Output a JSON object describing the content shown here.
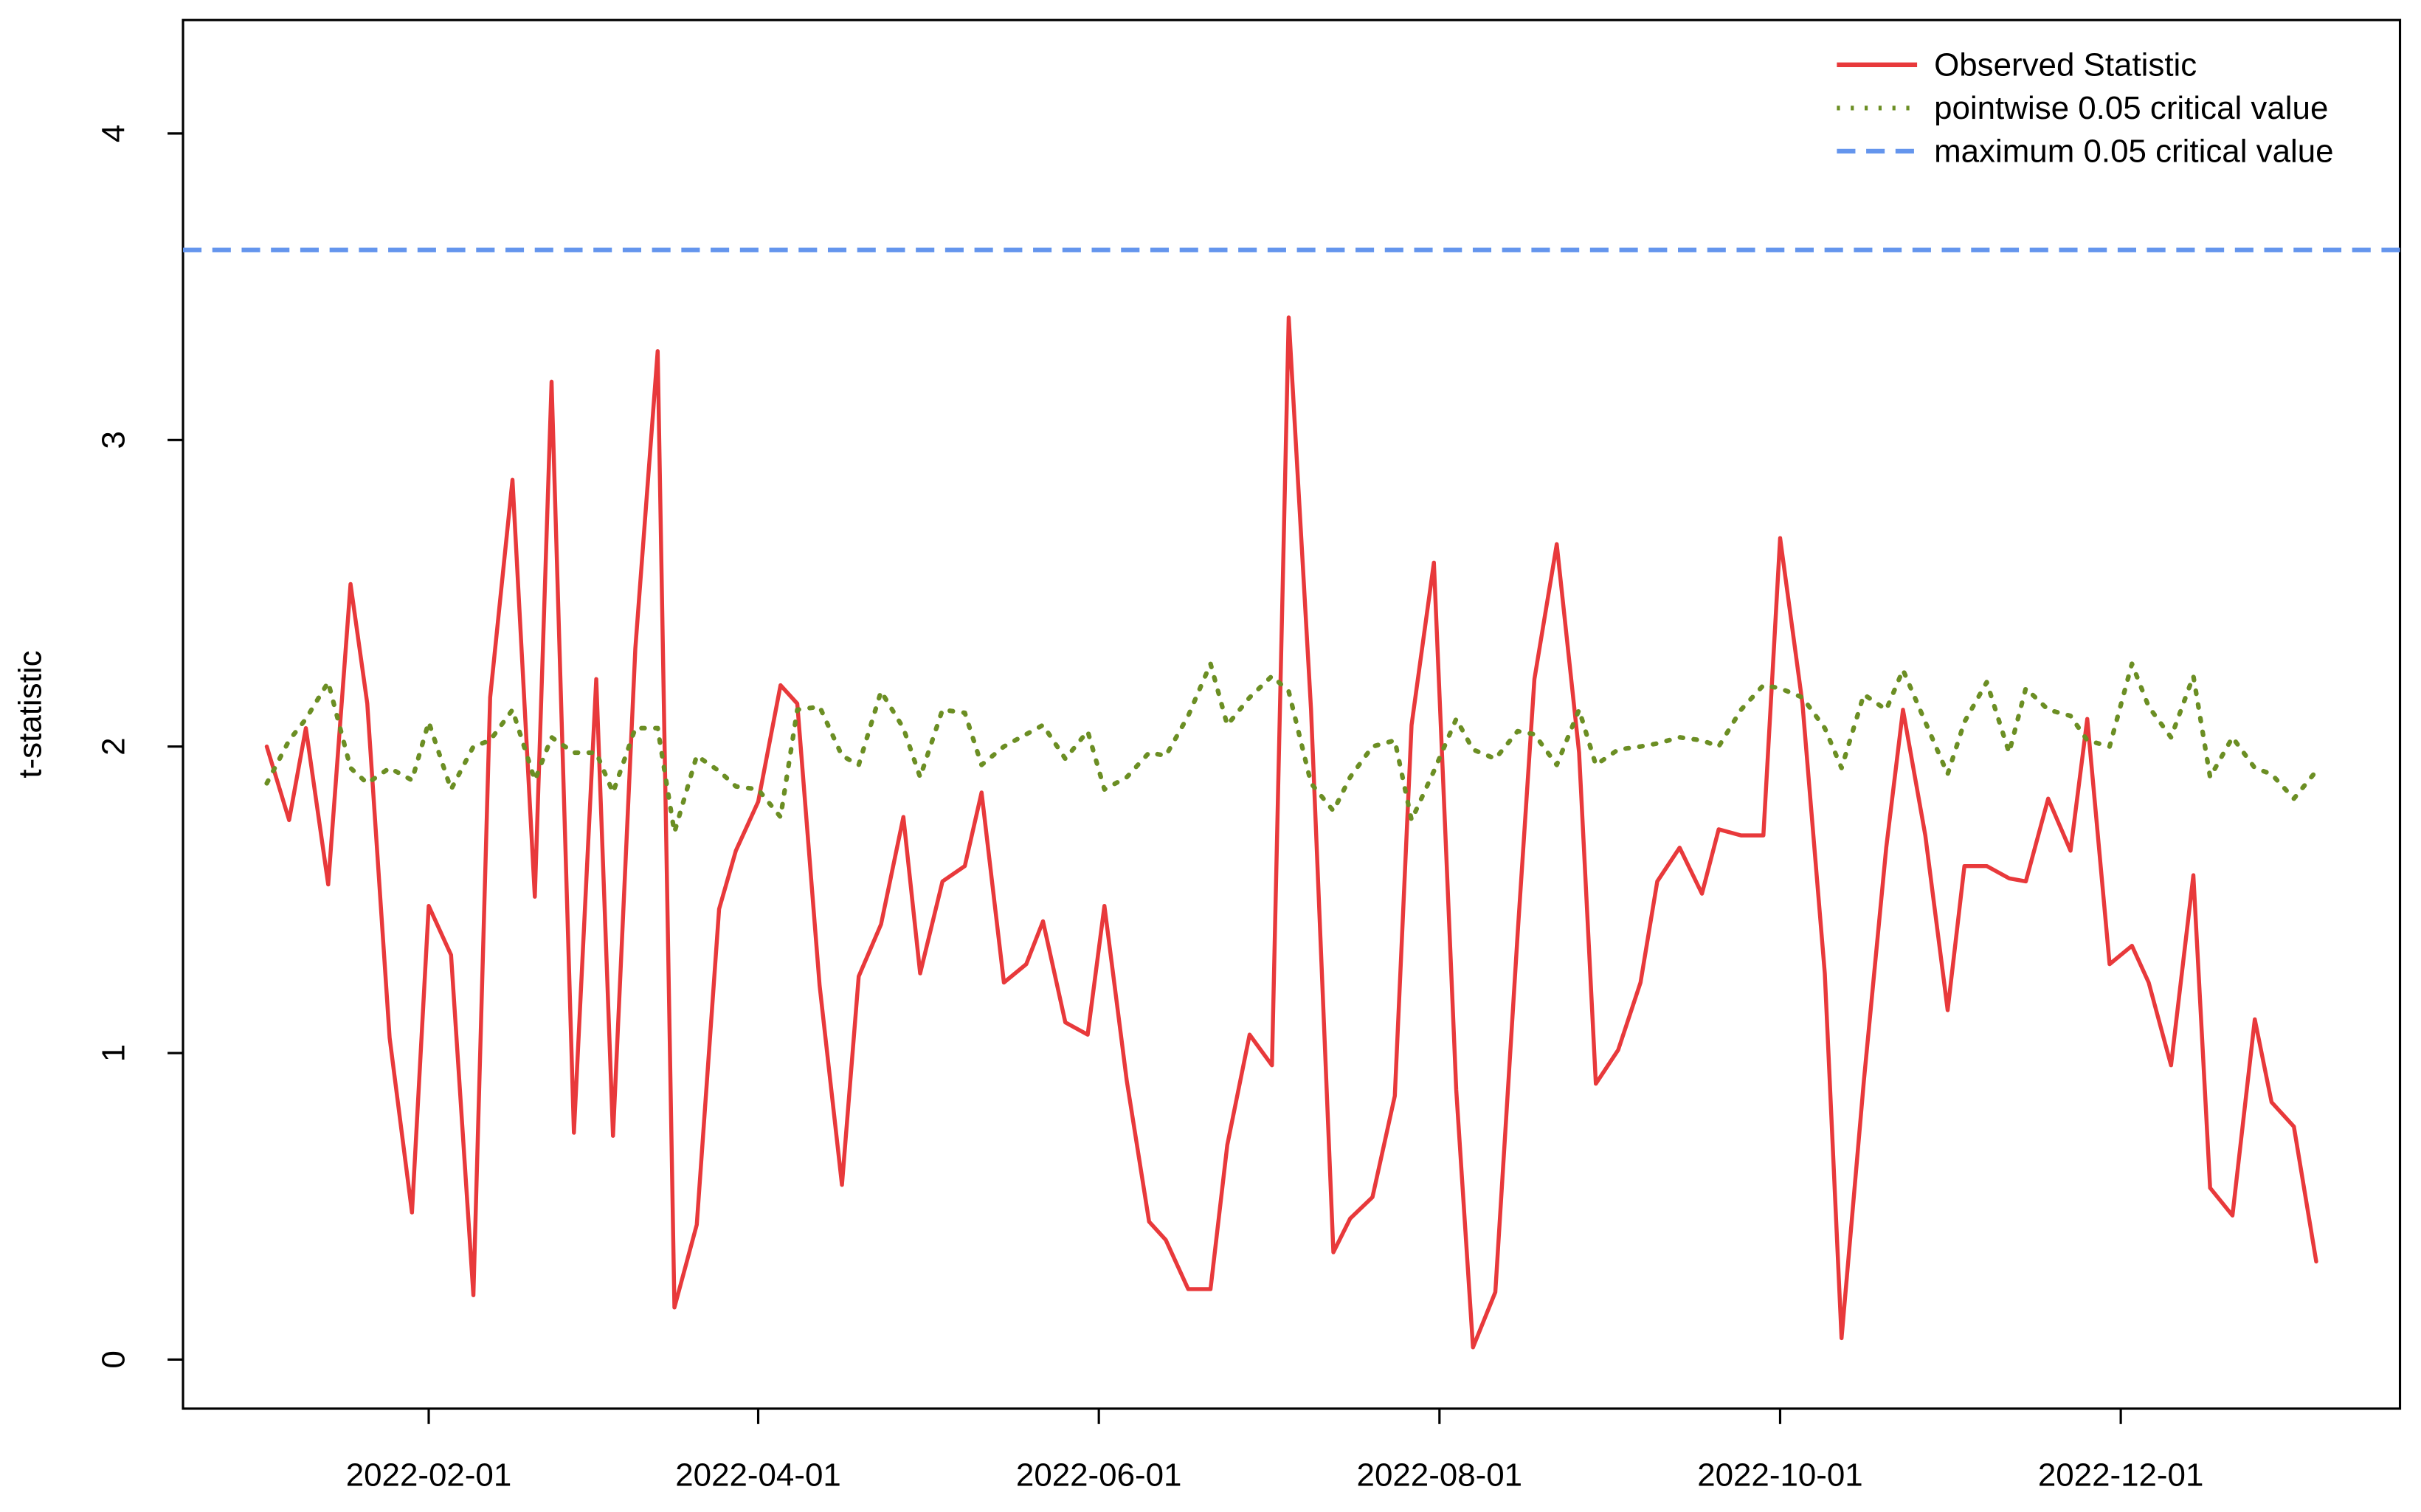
{
  "chart_data": {
    "type": "line",
    "ylabel": "t-statistic",
    "x": [
      "2022-01-03",
      "2022-01-07",
      "2022-01-10",
      "2022-01-14",
      "2022-01-18",
      "2022-01-21",
      "2022-01-25",
      "2022-01-29",
      "2022-02-01",
      "2022-02-05",
      "2022-02-09",
      "2022-02-12",
      "2022-02-16",
      "2022-02-20",
      "2022-02-23",
      "2022-02-27",
      "2022-03-03",
      "2022-03-06",
      "2022-03-10",
      "2022-03-14",
      "2022-03-17",
      "2022-03-21",
      "2022-03-25",
      "2022-03-28",
      "2022-04-01",
      "2022-04-05",
      "2022-04-08",
      "2022-04-12",
      "2022-04-16",
      "2022-04-19",
      "2022-04-23",
      "2022-04-27",
      "2022-04-30",
      "2022-05-04",
      "2022-05-08",
      "2022-05-11",
      "2022-05-15",
      "2022-05-19",
      "2022-05-22",
      "2022-05-26",
      "2022-05-30",
      "2022-06-02",
      "2022-06-06",
      "2022-06-10",
      "2022-06-13",
      "2022-06-17",
      "2022-06-21",
      "2022-06-24",
      "2022-06-28",
      "2022-07-02",
      "2022-07-05",
      "2022-07-09",
      "2022-07-13",
      "2022-07-16",
      "2022-07-20",
      "2022-07-24",
      "2022-07-27",
      "2022-07-31",
      "2022-08-04",
      "2022-08-07",
      "2022-08-11",
      "2022-08-15",
      "2022-08-18",
      "2022-08-22",
      "2022-08-26",
      "2022-08-29",
      "2022-09-02",
      "2022-09-06",
      "2022-09-09",
      "2022-09-13",
      "2022-09-17",
      "2022-09-20",
      "2022-09-24",
      "2022-09-28",
      "2022-10-01",
      "2022-10-05",
      "2022-10-09",
      "2022-10-12",
      "2022-10-16",
      "2022-10-20",
      "2022-10-23",
      "2022-10-27",
      "2022-10-31",
      "2022-11-03",
      "2022-11-07",
      "2022-11-11",
      "2022-11-14",
      "2022-11-18",
      "2022-11-22",
      "2022-11-25",
      "2022-11-29",
      "2022-12-03",
      "2022-12-06",
      "2022-12-10",
      "2022-12-14",
      "2022-12-17",
      "2022-12-21",
      "2022-12-25",
      "2022-12-28",
      "2023-01-01",
      "2023-01-05"
    ],
    "series": [
      {
        "name": "Observed Statistic",
        "color": "#e8393b",
        "dash": "solid",
        "values": [
          2.0,
          1.76,
          2.06,
          1.55,
          2.53,
          2.14,
          1.05,
          0.48,
          1.48,
          1.32,
          0.21,
          2.16,
          2.87,
          1.51,
          3.19,
          0.74,
          2.22,
          0.73,
          2.32,
          3.29,
          0.17,
          0.44,
          1.47,
          1.66,
          1.82,
          2.2,
          2.14,
          1.22,
          0.57,
          1.25,
          1.42,
          1.77,
          1.26,
          1.56,
          1.61,
          1.85,
          1.23,
          1.29,
          1.43,
          1.1,
          1.06,
          1.48,
          0.91,
          0.45,
          0.39,
          0.23,
          0.23,
          0.7,
          1.06,
          0.96,
          3.4,
          2.12,
          0.35,
          0.46,
          0.53,
          0.86,
          2.07,
          2.6,
          0.88,
          0.04,
          0.22,
          1.39,
          2.22,
          2.66,
          1.98,
          0.9,
          1.01,
          1.23,
          1.56,
          1.67,
          1.52,
          1.73,
          1.71,
          1.71,
          2.68,
          2.14,
          1.26,
          0.07,
          0.91,
          1.67,
          2.12,
          1.71,
          1.14,
          1.61,
          1.61,
          1.57,
          1.56,
          1.83,
          1.66,
          2.09,
          1.29,
          1.35,
          1.23,
          0.96,
          1.58,
          0.56,
          0.47,
          1.11,
          0.84,
          0.76,
          0.32
        ]
      },
      {
        "name": "pointwise 0.05 critical value",
        "color": "#6b8e23",
        "dash": "dotted",
        "values": [
          1.88,
          2.02,
          2.09,
          2.21,
          1.93,
          1.88,
          1.93,
          1.89,
          2.08,
          1.86,
          2.0,
          2.02,
          2.12,
          1.89,
          2.03,
          1.98,
          1.98,
          1.85,
          2.06,
          2.06,
          1.72,
          1.97,
          1.92,
          1.87,
          1.86,
          1.77,
          2.12,
          2.13,
          1.97,
          1.94,
          2.18,
          2.06,
          1.9,
          2.12,
          2.11,
          1.94,
          2.0,
          2.04,
          2.07,
          1.96,
          2.05,
          1.86,
          1.9,
          1.98,
          1.97,
          2.1,
          2.27,
          2.07,
          2.16,
          2.23,
          2.18,
          1.88,
          1.79,
          1.9,
          2.0,
          2.02,
          1.76,
          1.92,
          2.09,
          1.99,
          1.96,
          2.05,
          2.04,
          1.94,
          2.12,
          1.94,
          1.99,
          2.0,
          2.01,
          2.03,
          2.02,
          2.0,
          2.12,
          2.2,
          2.19,
          2.16,
          2.06,
          1.93,
          2.17,
          2.12,
          2.25,
          2.08,
          1.91,
          2.08,
          2.21,
          1.98,
          2.19,
          2.12,
          2.1,
          2.02,
          2.0,
          2.27,
          2.13,
          2.03,
          2.23,
          1.9,
          2.03,
          1.93,
          1.91,
          1.83,
          1.92
        ]
      }
    ],
    "reference_lines": [
      {
        "name": "maximum 0.05 critical value",
        "value": 3.62,
        "color": "#6495ed",
        "dash": "dashed"
      }
    ],
    "xlim": [
      "2021-12-19",
      "2023-01-20"
    ],
    "xticks": [
      "2022-02-01",
      "2022-04-01",
      "2022-06-01",
      "2022-08-01",
      "2022-10-01",
      "2022-12-01"
    ],
    "ylim": [
      -0.16,
      4.37
    ],
    "yticks": [
      0,
      1,
      2,
      3,
      4
    ],
    "legend": "top-right",
    "grid": false
  }
}
